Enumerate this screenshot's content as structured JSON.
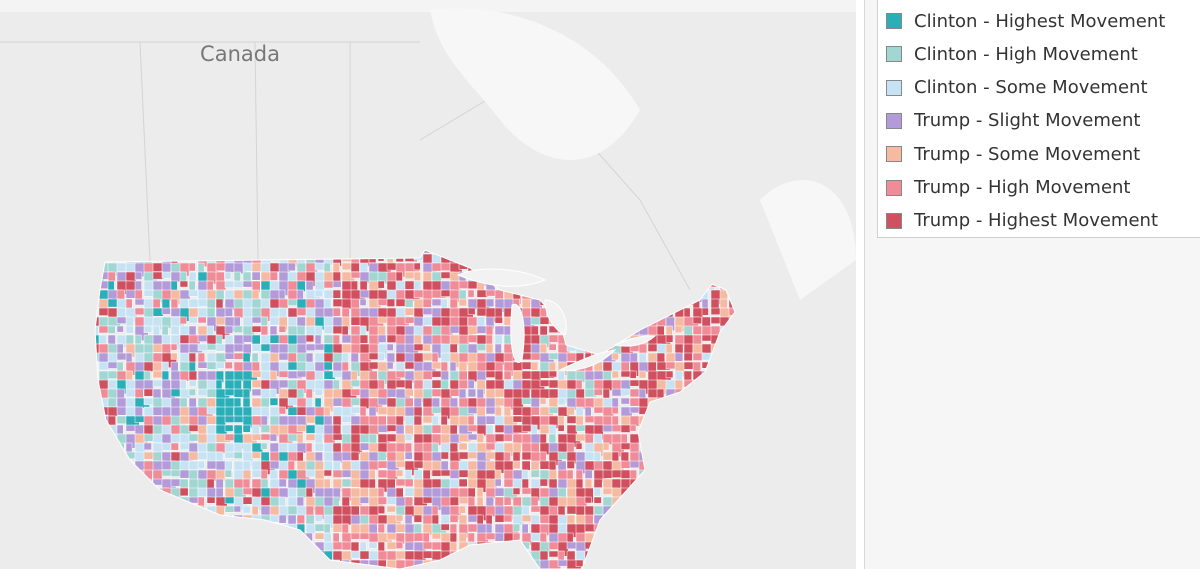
{
  "map": {
    "label": "Canada"
  },
  "legend": {
    "items": [
      {
        "label": "Clinton - Highest Movement",
        "color": "#2aaeb8"
      },
      {
        "label": "Clinton - High Movement",
        "color": "#a2d6d2"
      },
      {
        "label": "Clinton - Some Movement",
        "color": "#c6e2f3"
      },
      {
        "label": "Trump - Slight Movement",
        "color": "#b29bd8"
      },
      {
        "label": "Trump - Some Movement",
        "color": "#f6baa2"
      },
      {
        "label": "Trump - High Movement",
        "color": "#f08b98"
      },
      {
        "label": "Trump - Highest Movement",
        "color": "#d0505f"
      }
    ]
  }
}
